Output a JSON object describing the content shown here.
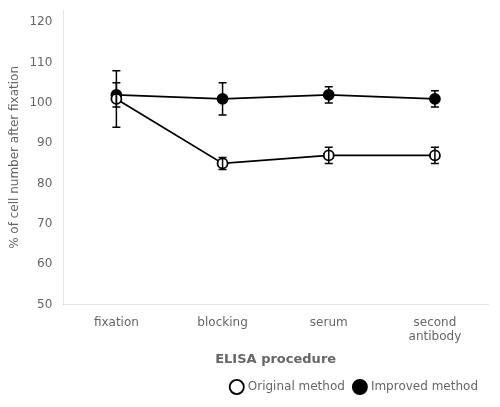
{
  "chart_data": {
    "type": "line",
    "categories": [
      "fixation",
      "blocking",
      "serum",
      "second\nantibody"
    ],
    "series": [
      {
        "name": "Original method",
        "color": "#000000",
        "marker": "open_circle",
        "values": [
          101,
          85,
          87,
          87
        ],
        "errors": [
          7,
          1.5,
          2,
          2
        ]
      },
      {
        "name": "Improved method",
        "color": "#000000",
        "marker": "circle",
        "values": [
          102,
          101,
          102,
          101
        ],
        "errors": [
          3,
          4,
          2,
          2
        ]
      }
    ],
    "xlabel": "ELISA procedure",
    "ylabel": "% of cell number after fixation",
    "ylim": [
      50,
      123
    ],
    "yticks": [
      50,
      60,
      70,
      80,
      90,
      100,
      110,
      120
    ],
    "grid": false,
    "legend": "lower right"
  }
}
